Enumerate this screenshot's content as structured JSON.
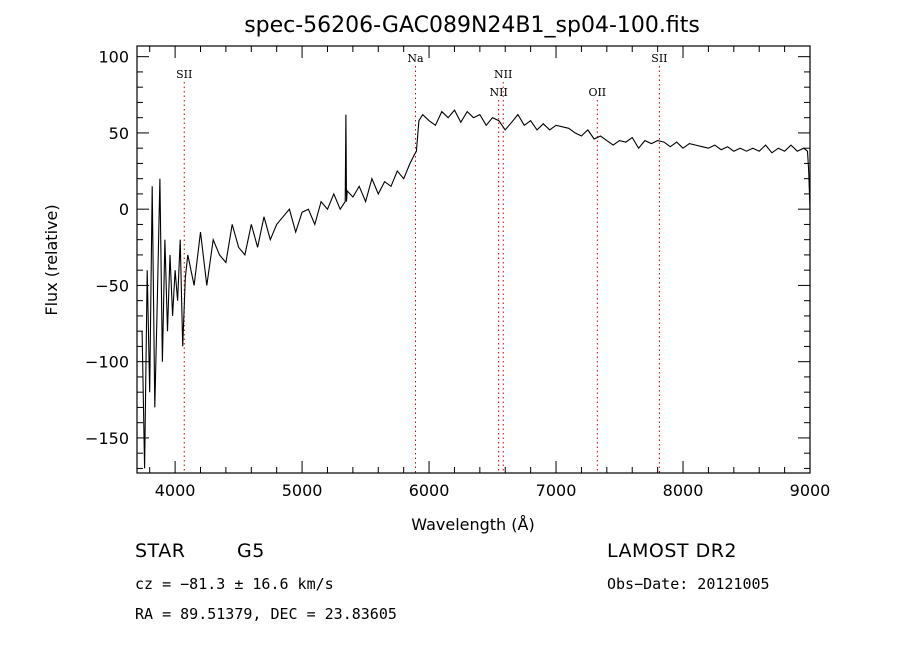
{
  "chart_data": {
    "type": "line",
    "title": "spec-56206-GAC089N24B1_sp04-100.fits",
    "xlabel": "Wavelength (Å)",
    "ylabel": "Flux (relative)",
    "xlim": [
      3700,
      9000
    ],
    "ylim": [
      -173,
      107
    ],
    "xticks": [
      4000,
      5000,
      6000,
      7000,
      8000,
      9000
    ],
    "yticks": [
      -150,
      -100,
      -50,
      0,
      50,
      100
    ],
    "grid": false,
    "series": [
      {
        "line_color": "#000000",
        "x": [
          3740,
          3760,
          3780,
          3800,
          3820,
          3840,
          3860,
          3880,
          3900,
          3920,
          3940,
          3960,
          3980,
          4000,
          4020,
          4040,
          4060,
          4080,
          4100,
          4150,
          4200,
          4250,
          4300,
          4350,
          4400,
          4450,
          4500,
          4550,
          4600,
          4650,
          4700,
          4750,
          4800,
          4850,
          4900,
          4950,
          5000,
          5050,
          5100,
          5150,
          5200,
          5250,
          5300,
          5340,
          5345,
          5350,
          5355,
          5400,
          5450,
          5500,
          5550,
          5600,
          5650,
          5700,
          5750,
          5800,
          5850,
          5880,
          5900,
          5920,
          5950,
          6000,
          6050,
          6100,
          6150,
          6200,
          6250,
          6300,
          6350,
          6400,
          6450,
          6500,
          6550,
          6600,
          6650,
          6700,
          6750,
          6800,
          6850,
          6900,
          6950,
          7000,
          7050,
          7100,
          7150,
          7200,
          7250,
          7300,
          7350,
          7400,
          7450,
          7500,
          7550,
          7600,
          7650,
          7700,
          7750,
          7800,
          7850,
          7900,
          7950,
          8000,
          8050,
          8100,
          8150,
          8200,
          8250,
          8300,
          8350,
          8400,
          8450,
          8500,
          8550,
          8600,
          8650,
          8700,
          8750,
          8800,
          8850,
          8900,
          8950,
          8980,
          8990,
          9000
        ],
        "y": [
          -80,
          -170,
          -40,
          -120,
          15,
          -130,
          -60,
          20,
          -100,
          -20,
          -80,
          -30,
          -70,
          -40,
          -60,
          -20,
          -90,
          -45,
          -30,
          -50,
          -15,
          -50,
          -20,
          -30,
          -35,
          -10,
          -25,
          -30,
          -10,
          -25,
          -5,
          -20,
          -10,
          -5,
          0,
          -15,
          -2,
          0,
          -10,
          5,
          0,
          10,
          0,
          5,
          62,
          5,
          12,
          8,
          15,
          5,
          20,
          10,
          18,
          15,
          25,
          20,
          30,
          35,
          38,
          58,
          62,
          58,
          55,
          64,
          60,
          65,
          57,
          64,
          60,
          62,
          55,
          60,
          58,
          52,
          57,
          62,
          55,
          58,
          52,
          56,
          52,
          55,
          54,
          53,
          50,
          48,
          52,
          46,
          48,
          45,
          42,
          45,
          44,
          47,
          40,
          45,
          43,
          45,
          44,
          41,
          44,
          40,
          43,
          42,
          41,
          40,
          42,
          39,
          41,
          38,
          40,
          38,
          40,
          38,
          42,
          37,
          40,
          38,
          42,
          38,
          40,
          38,
          25,
          0
        ]
      }
    ],
    "line_markers": [
      {
        "label": "SII",
        "x": 4072,
        "row": 1
      },
      {
        "label": "Na",
        "x": 5893,
        "row": 0
      },
      {
        "label": "NII",
        "x": 6548,
        "row": 2
      },
      {
        "label": "NII",
        "x": 6584,
        "row": 1
      },
      {
        "label": "OII",
        "x": 7325,
        "row": 2
      },
      {
        "label": "SII",
        "x": 7814,
        "row": 0
      }
    ],
    "marker_color": "#cc0000"
  },
  "info": {
    "object_class": "STAR",
    "subclass": "G5",
    "survey": "LAMOST DR2",
    "redshift": "cz = −81.3 ± 16.6 km/s",
    "obs_date": "Obs−Date: 20121005",
    "coords": "RA =  89.51379, DEC =  23.83605"
  }
}
